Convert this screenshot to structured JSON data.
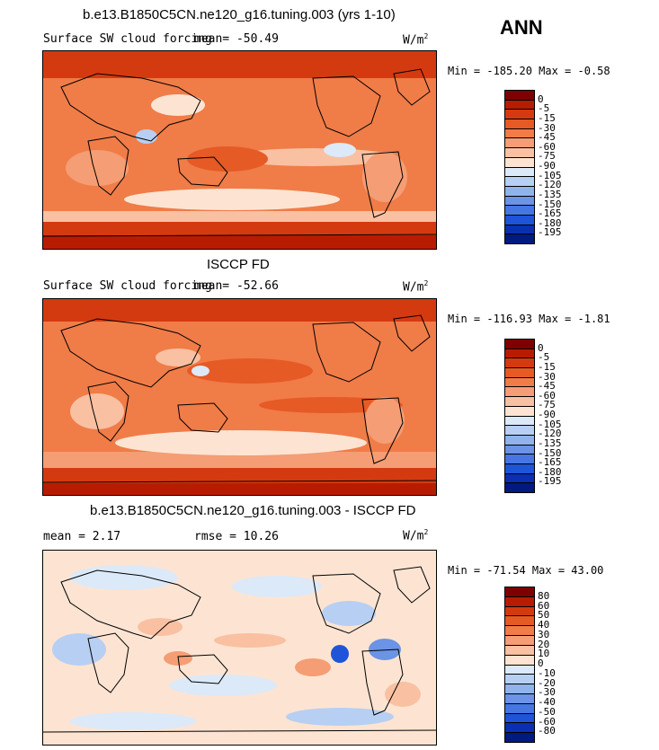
{
  "page": {
    "season": "ANN"
  },
  "chart_data": [
    {
      "type": "heatmap",
      "title": "b.e13.B1850C5CN.ne120_g16.tuning.003 (yrs 1-10)",
      "subtitle": "Surface SW cloud forcing",
      "mean_text": "mean=  -50.49",
      "units": "W/m",
      "units_exp": "2",
      "minmax_text": "Min = -185.20 Max =  -0.58",
      "min": -185.2,
      "max": -0.58,
      "mean": -50.49,
      "colorbar": {
        "labels": [
          "0",
          "-5",
          "-15",
          "-30",
          "-45",
          "-60",
          "-75",
          "-90",
          "-105",
          "-120",
          "-135",
          "-150",
          "-165",
          "-180",
          "-195"
        ],
        "colors": [
          "#7f0000",
          "#b81c00",
          "#d43a10",
          "#e65a26",
          "#f07c48",
          "#f59d74",
          "#f9c0a2",
          "#fde4d2",
          "#dce9f8",
          "#b7cff2",
          "#90b3ec",
          "#6b93e6",
          "#4676e2",
          "#1e54d8",
          "#0a2fb0",
          "#001a80"
        ]
      }
    },
    {
      "type": "heatmap",
      "title": "ISCCP FD",
      "subtitle": "Surface SW cloud forcing",
      "mean_text": "mean=  -52.66",
      "units": "W/m",
      "units_exp": "2",
      "minmax_text": "Min = -116.93 Max =  -1.81",
      "min": -116.93,
      "max": -1.81,
      "mean": -52.66,
      "colorbar": {
        "labels": [
          "0",
          "-5",
          "-15",
          "-30",
          "-45",
          "-60",
          "-75",
          "-90",
          "-105",
          "-120",
          "-135",
          "-150",
          "-165",
          "-180",
          "-195"
        ],
        "colors": [
          "#7f0000",
          "#b81c00",
          "#d43a10",
          "#e65a26",
          "#f07c48",
          "#f59d74",
          "#f9c0a2",
          "#fde4d2",
          "#dce9f8",
          "#b7cff2",
          "#90b3ec",
          "#6b93e6",
          "#4676e2",
          "#1e54d8",
          "#0a2fb0",
          "#001a80"
        ]
      }
    },
    {
      "type": "heatmap",
      "title": "b.e13.B1850C5CN.ne120_g16.tuning.003 - ISCCP FD",
      "mean_text": "mean =    2.17",
      "rmse_text": "rmse =   10.26",
      "units": "W/m",
      "units_exp": "2",
      "minmax_text": "Min = -71.54 Max =  43.00",
      "min": -71.54,
      "max": 43.0,
      "mean": 2.17,
      "rmse": 10.26,
      "colorbar": {
        "labels": [
          "80",
          "60",
          "50",
          "40",
          "30",
          "20",
          "10",
          "0",
          "-10",
          "-20",
          "-30",
          "-40",
          "-50",
          "-60",
          "-80"
        ],
        "colors": [
          "#7f0000",
          "#b81c00",
          "#d43a10",
          "#e65a26",
          "#f07c48",
          "#f59d74",
          "#f9c0a2",
          "#fde4d2",
          "#dce9f8",
          "#b7cff2",
          "#90b3ec",
          "#6b93e6",
          "#4676e2",
          "#1e54d8",
          "#0a2fb0",
          "#001a80"
        ]
      }
    }
  ]
}
